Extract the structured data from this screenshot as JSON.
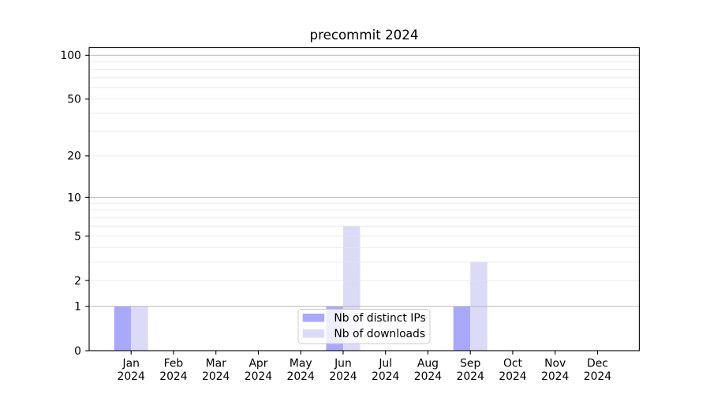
{
  "chart_data": {
    "type": "bar",
    "title": "precommit 2024",
    "categories": [
      "Jan 2024",
      "Feb 2024",
      "Mar 2024",
      "Apr 2024",
      "May 2024",
      "Jun 2024",
      "Jul 2024",
      "Aug 2024",
      "Sep 2024",
      "Oct 2024",
      "Nov 2024",
      "Dec 2024"
    ],
    "series": [
      {
        "name": "Nb of distinct IPs",
        "color": "#a9a9fb",
        "values": [
          1,
          0,
          0,
          0,
          0,
          1,
          0,
          0,
          1,
          0,
          0,
          0
        ]
      },
      {
        "name": "Nb of downloads",
        "color": "#dbdbf8",
        "values": [
          1,
          0,
          0,
          0,
          0,
          6,
          0,
          0,
          3,
          0,
          0,
          0
        ]
      }
    ],
    "xlabel": "",
    "ylabel": "",
    "yscale": "log10(1+y)",
    "ylim": [
      0,
      113.7
    ],
    "yticks": [
      0,
      1,
      2,
      5,
      10,
      20,
      50,
      100
    ],
    "grid": "on",
    "major_gridlines": [
      1,
      10,
      100
    ],
    "minor_gridlines": [
      2,
      3,
      4,
      5,
      6,
      7,
      8,
      9,
      20,
      30,
      40,
      50,
      60,
      70,
      80,
      90
    ],
    "legend_position": "lower center"
  },
  "legend": {
    "items": [
      {
        "label": "Nb of distinct IPs",
        "color": "#a9a9fb"
      },
      {
        "label": "Nb of downloads",
        "color": "#dbdbf8"
      }
    ]
  },
  "colors": {
    "background": "#ffffff",
    "spine": "#000000",
    "text": "#000000",
    "major_grid": "#b7b7b7",
    "minor_grid": "#e4e4e4",
    "legend_border": "#cccccc",
    "legend_background": "rgba(255,255,255,0.8)"
  }
}
